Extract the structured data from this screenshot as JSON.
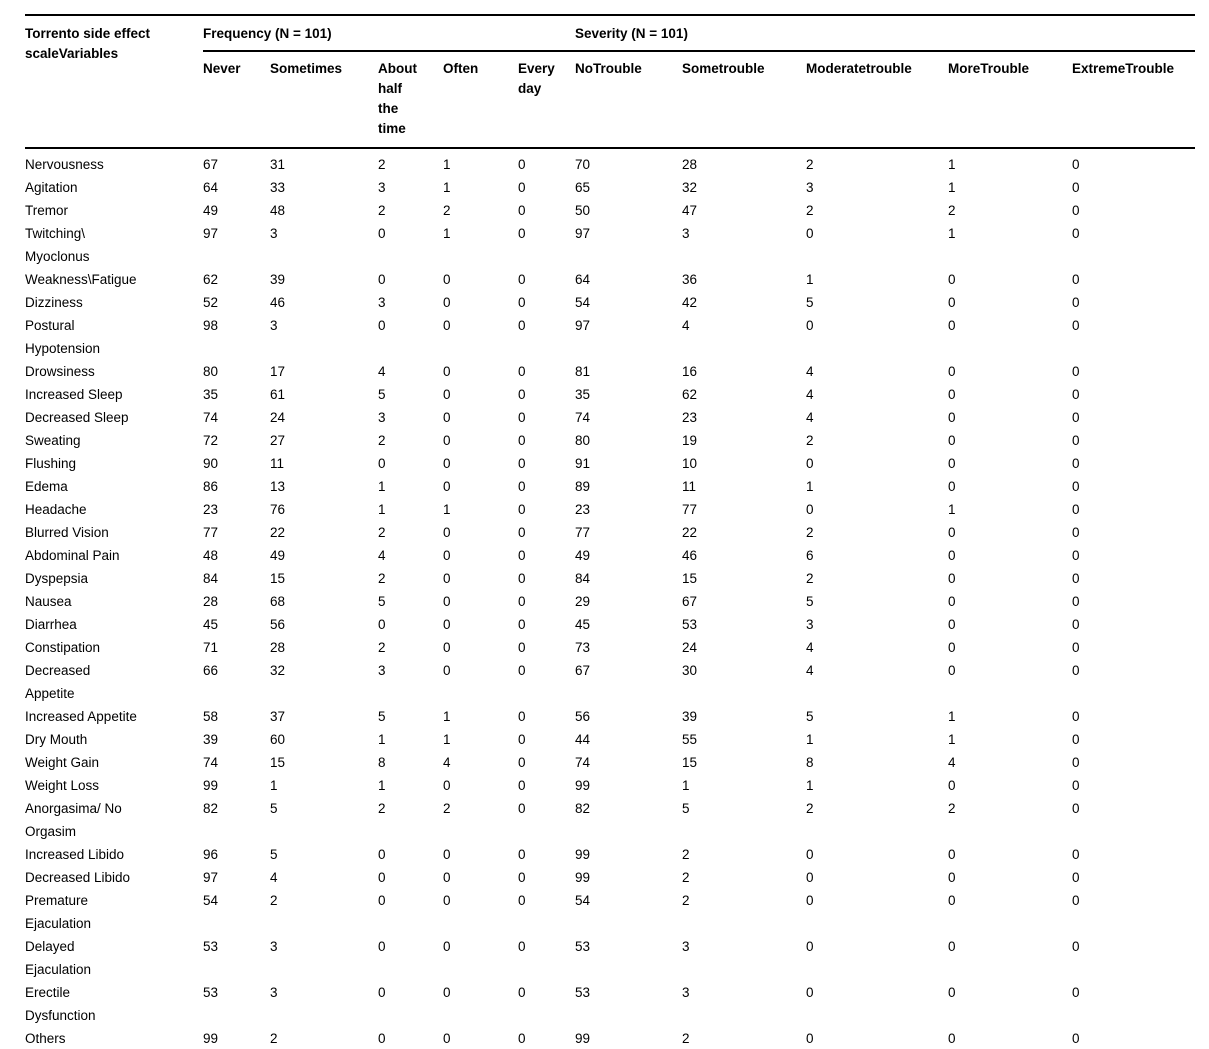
{
  "table": {
    "stub_header": "Torrento side effect\nscaleVariables",
    "frequency_group": "Frequency (N = 101)",
    "severity_group": "Severity (N = 101)",
    "freq_columns": [
      "Never",
      "Sometimes",
      "About\nhalf\nthe\ntime",
      "Often",
      "Every\nday"
    ],
    "sev_columns": [
      "NoTrouble",
      "Sometrouble",
      "Moderatetrouble",
      "MoreTrouble",
      "ExtremeTrouble"
    ],
    "rows": [
      {
        "label": "Nervousness",
        "freq": [
          67,
          31,
          2,
          1,
          0
        ],
        "sev": [
          70,
          28,
          2,
          1,
          0
        ]
      },
      {
        "label": "Agitation",
        "freq": [
          64,
          33,
          3,
          1,
          0
        ],
        "sev": [
          65,
          32,
          3,
          1,
          0
        ]
      },
      {
        "label": "Tremor",
        "freq": [
          49,
          48,
          2,
          2,
          0
        ],
        "sev": [
          50,
          47,
          2,
          2,
          0
        ]
      },
      {
        "label": "Twitching\\\nMyoclonus",
        "freq": [
          97,
          3,
          0,
          1,
          0
        ],
        "sev": [
          97,
          3,
          0,
          1,
          0
        ]
      },
      {
        "label": "Weakness\\Fatigue",
        "freq": [
          62,
          39,
          0,
          0,
          0
        ],
        "sev": [
          64,
          36,
          1,
          0,
          0
        ]
      },
      {
        "label": "Dizziness",
        "freq": [
          52,
          46,
          3,
          0,
          0
        ],
        "sev": [
          54,
          42,
          5,
          0,
          0
        ]
      },
      {
        "label": "Postural\nHypotension",
        "freq": [
          98,
          3,
          0,
          0,
          0
        ],
        "sev": [
          97,
          4,
          0,
          0,
          0
        ]
      },
      {
        "label": "Drowsiness",
        "freq": [
          80,
          17,
          4,
          0,
          0
        ],
        "sev": [
          81,
          16,
          4,
          0,
          0
        ]
      },
      {
        "label": "Increased Sleep",
        "freq": [
          35,
          61,
          5,
          0,
          0
        ],
        "sev": [
          35,
          62,
          4,
          0,
          0
        ]
      },
      {
        "label": "Decreased Sleep",
        "freq": [
          74,
          24,
          3,
          0,
          0
        ],
        "sev": [
          74,
          23,
          4,
          0,
          0
        ]
      },
      {
        "label": "Sweating",
        "freq": [
          72,
          27,
          2,
          0,
          0
        ],
        "sev": [
          80,
          19,
          2,
          0,
          0
        ]
      },
      {
        "label": "Flushing",
        "freq": [
          90,
          11,
          0,
          0,
          0
        ],
        "sev": [
          91,
          10,
          0,
          0,
          0
        ]
      },
      {
        "label": "Edema",
        "freq": [
          86,
          13,
          1,
          0,
          0
        ],
        "sev": [
          89,
          11,
          1,
          0,
          0
        ]
      },
      {
        "label": "Headache",
        "freq": [
          23,
          76,
          1,
          1,
          0
        ],
        "sev": [
          23,
          77,
          0,
          1,
          0
        ]
      },
      {
        "label": "Blurred Vision",
        "freq": [
          77,
          22,
          2,
          0,
          0
        ],
        "sev": [
          77,
          22,
          2,
          0,
          0
        ]
      },
      {
        "label": "Abdominal Pain",
        "freq": [
          48,
          49,
          4,
          0,
          0
        ],
        "sev": [
          49,
          46,
          6,
          0,
          0
        ]
      },
      {
        "label": "Dyspepsia",
        "freq": [
          84,
          15,
          2,
          0,
          0
        ],
        "sev": [
          84,
          15,
          2,
          0,
          0
        ]
      },
      {
        "label": "Nausea",
        "freq": [
          28,
          68,
          5,
          0,
          0
        ],
        "sev": [
          29,
          67,
          5,
          0,
          0
        ]
      },
      {
        "label": "Diarrhea",
        "freq": [
          45,
          56,
          0,
          0,
          0
        ],
        "sev": [
          45,
          53,
          3,
          0,
          0
        ]
      },
      {
        "label": "Constipation",
        "freq": [
          71,
          28,
          2,
          0,
          0
        ],
        "sev": [
          73,
          24,
          4,
          0,
          0
        ]
      },
      {
        "label": "Decreased\nAppetite",
        "freq": [
          66,
          32,
          3,
          0,
          0
        ],
        "sev": [
          67,
          30,
          4,
          0,
          0
        ]
      },
      {
        "label": "Increased Appetite",
        "freq": [
          58,
          37,
          5,
          1,
          0
        ],
        "sev": [
          56,
          39,
          5,
          1,
          0
        ]
      },
      {
        "label": "Dry Mouth",
        "freq": [
          39,
          60,
          1,
          1,
          0
        ],
        "sev": [
          44,
          55,
          1,
          1,
          0
        ]
      },
      {
        "label": "Weight Gain",
        "freq": [
          74,
          15,
          8,
          4,
          0
        ],
        "sev": [
          74,
          15,
          8,
          4,
          0
        ]
      },
      {
        "label": "Weight Loss",
        "freq": [
          99,
          1,
          1,
          0,
          0
        ],
        "sev": [
          99,
          1,
          1,
          0,
          0
        ]
      },
      {
        "label": "Anorgasima/ No\nOrgasim",
        "freq": [
          82,
          5,
          2,
          2,
          0
        ],
        "sev": [
          82,
          5,
          2,
          2,
          0
        ]
      },
      {
        "label": "Increased Libido",
        "freq": [
          96,
          5,
          0,
          0,
          0
        ],
        "sev": [
          99,
          2,
          0,
          0,
          0
        ]
      },
      {
        "label": "Decreased Libido",
        "freq": [
          97,
          4,
          0,
          0,
          0
        ],
        "sev": [
          99,
          2,
          0,
          0,
          0
        ]
      },
      {
        "label": "Premature\nEjaculation",
        "freq": [
          54,
          2,
          0,
          0,
          0
        ],
        "sev": [
          54,
          2,
          0,
          0,
          0
        ]
      },
      {
        "label": "Delayed\nEjaculation",
        "freq": [
          53,
          3,
          0,
          0,
          0
        ],
        "sev": [
          53,
          3,
          0,
          0,
          0
        ]
      },
      {
        "label": "Erectile\nDysfunction",
        "freq": [
          53,
          3,
          0,
          0,
          0
        ],
        "sev": [
          53,
          3,
          0,
          0,
          0
        ]
      },
      {
        "label": "Others",
        "freq": [
          99,
          2,
          0,
          0,
          0
        ],
        "sev": [
          99,
          2,
          0,
          0,
          0
        ]
      }
    ]
  }
}
